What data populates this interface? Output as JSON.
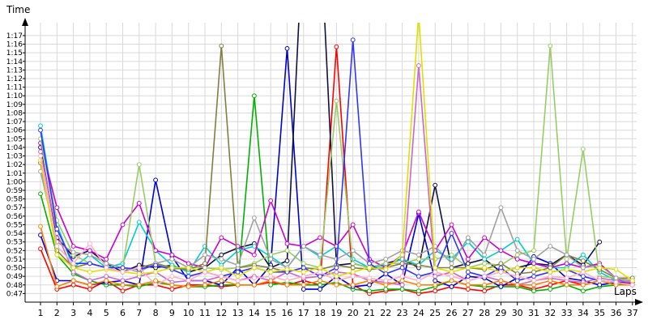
{
  "chart_data": {
    "type": "line",
    "ylabel": "Time",
    "xlabel": "Laps",
    "grid": true,
    "x": [
      1,
      2,
      3,
      4,
      5,
      6,
      7,
      8,
      9,
      10,
      11,
      12,
      13,
      14,
      15,
      16,
      17,
      18,
      19,
      20,
      21,
      22,
      23,
      24,
      25,
      26,
      27,
      28,
      29,
      30,
      31,
      32,
      33,
      34,
      35,
      36,
      37
    ],
    "x_tick_labels": [
      "1",
      "2",
      "3",
      "4",
      "5",
      "6",
      "7",
      "8",
      "9",
      "10",
      "11",
      "12",
      "13",
      "14",
      "15",
      "16",
      "17",
      "18",
      "19",
      "20",
      "21",
      "22",
      "23",
      "24",
      "25",
      "26",
      "27",
      "28",
      "29",
      "30",
      "31",
      "32",
      "33",
      "34",
      "35",
      "36",
      "37"
    ],
    "y_unit": "seconds",
    "ylim": [
      46,
      78.5
    ],
    "y_ticks": [
      47,
      48,
      49,
      50,
      51,
      52,
      53,
      54,
      55,
      56,
      57,
      58,
      59,
      60,
      61,
      62,
      63,
      64,
      65,
      66,
      67,
      68,
      69,
      70,
      71,
      72,
      73,
      74,
      75,
      76,
      77
    ],
    "y_tick_labels": [
      "0:47",
      "0:48",
      "0:49",
      "0:50",
      "0:51",
      "0:52",
      "0:53",
      "0:54",
      "0:55",
      "0:56",
      "0:57",
      "0:58",
      "0:59",
      "1:00",
      "1:01",
      "1:02",
      "1:03",
      "1:04",
      "1:05",
      "1:06",
      "1:07",
      "1:08",
      "1:09",
      "1:10",
      "1:11",
      "1:12",
      "1:13",
      "1:14",
      "1:15",
      "1:16",
      "1:17"
    ],
    "series": [
      {
        "color": "#ff0000",
        "values": [
          52.2,
          47.5,
          48.0,
          47.5,
          48.5,
          47.3,
          48.0,
          48.0,
          47.5,
          48.0,
          48.0,
          47.8,
          48.0,
          48.0,
          48.3,
          48.0,
          48.5,
          48.0,
          75.7,
          48.0,
          47.0,
          47.3,
          47.5,
          47.0,
          47.3,
          47.8,
          47.5,
          47.3,
          48.0,
          48.0,
          47.5,
          48.0,
          48.5,
          48.0,
          48.5,
          48.3,
          48.0
        ]
      },
      {
        "color": "#00b000",
        "values": [
          58.6,
          51.5,
          49.3,
          48.5,
          48.0,
          48.0,
          47.8,
          48.3,
          48.0,
          47.8,
          47.8,
          48.0,
          48.0,
          70.0,
          48.0,
          48.3,
          48.0,
          48.0,
          48.3,
          47.5,
          47.3,
          47.5,
          47.5,
          47.3,
          47.8,
          48.5,
          48.0,
          47.8,
          47.8,
          47.8,
          47.3,
          47.5,
          48.0,
          47.3,
          47.8,
          48.0,
          48.3
        ]
      },
      {
        "color": "#0000cc",
        "values": [
          53.8,
          48.5,
          48.5,
          48.0,
          48.3,
          48.5,
          48.0,
          60.2,
          51.3,
          48.5,
          48.5,
          48.0,
          50.0,
          48.0,
          50.3,
          75.5,
          47.5,
          47.5,
          49.0,
          47.8,
          48.0,
          49.3,
          48.0,
          56.3,
          48.5,
          47.8,
          49.0,
          48.8,
          47.8,
          48.8,
          51.3,
          50.5,
          48.8,
          48.5,
          48.0,
          48.3,
          48.3
        ]
      },
      {
        "color": "#101040",
        "values": [
          64.0,
          53.5,
          51.3,
          52.0,
          50.5,
          49.5,
          50.3,
          50.0,
          50.3,
          49.5,
          50.0,
          51.5,
          52.3,
          52.8,
          50.0,
          50.8,
          90.0,
          90.0,
          50.3,
          50.5,
          50.0,
          50.5,
          51.0,
          50.0,
          59.6,
          50.0,
          50.5,
          51.0,
          49.5,
          50.0,
          50.5,
          50.3,
          51.5,
          50.3,
          53.0,
          null,
          null
        ]
      },
      {
        "color": "#00cccc",
        "values": [
          66.5,
          55.0,
          50.0,
          51.5,
          50.0,
          50.5,
          55.3,
          52.0,
          50.3,
          49.5,
          52.5,
          50.3,
          52.0,
          52.5,
          51.3,
          50.0,
          52.5,
          51.3,
          52.5,
          51.0,
          50.0,
          50.3,
          51.0,
          50.3,
          52.0,
          51.0,
          53.0,
          51.0,
          52.0,
          53.3,
          50.5,
          50.0,
          50.0,
          51.5,
          49.5,
          48.5,
          48.5
        ]
      },
      {
        "color": "#cc00cc",
        "values": [
          64.5,
          57.0,
          52.5,
          52.0,
          51.0,
          55.0,
          57.5,
          52.0,
          51.5,
          50.5,
          50.0,
          53.5,
          52.5,
          51.5,
          57.8,
          52.8,
          52.5,
          53.5,
          52.5,
          55.0,
          51.0,
          50.0,
          51.5,
          56.5,
          52.0,
          55.0,
          51.0,
          53.5,
          52.0,
          51.0,
          50.5,
          50.0,
          50.5,
          50.0,
          50.5,
          48.8,
          48.0
        ]
      },
      {
        "color": "#99cc66",
        "values": [
          65.0,
          55.5,
          51.5,
          50.5,
          50.0,
          50.0,
          62.0,
          50.5,
          49.8,
          50.0,
          50.0,
          49.8,
          50.0,
          50.5,
          51.5,
          52.0,
          50.5,
          50.0,
          69.4,
          50.5,
          50.0,
          50.5,
          50.5,
          51.0,
          51.0,
          51.5,
          50.0,
          50.5,
          50.3,
          51.5,
          52.0,
          75.8,
          51.0,
          63.8,
          49.0,
          48.8,
          48.3
        ]
      },
      {
        "color": "#808040",
        "values": [
          62.2,
          52.0,
          50.0,
          50.5,
          50.0,
          49.5,
          50.0,
          50.5,
          50.0,
          49.8,
          50.5,
          75.8,
          50.0,
          50.3,
          50.0,
          49.5,
          50.0,
          49.8,
          50.3,
          50.0,
          49.8,
          50.0,
          50.5,
          50.3,
          50.0,
          50.0,
          50.0,
          49.8,
          50.5,
          49.3,
          49.5,
          50.0,
          51.5,
          50.8,
          49.8,
          48.8,
          48.8
        ]
      },
      {
        "color": "#cc66cc",
        "values": [
          63.5,
          54.0,
          49.5,
          48.5,
          49.0,
          48.5,
          49.0,
          49.5,
          48.3,
          48.5,
          48.5,
          49.0,
          48.5,
          49.0,
          48.5,
          49.5,
          48.8,
          49.0,
          49.5,
          49.3,
          48.5,
          48.3,
          48.0,
          73.5,
          49.0,
          49.5,
          48.5,
          49.0,
          48.5,
          48.0,
          48.5,
          48.8,
          48.5,
          48.3,
          48.8,
          48.5,
          48.3
        ]
      },
      {
        "color": "#a0a0a0",
        "values": [
          61.2,
          53.0,
          51.8,
          51.5,
          50.5,
          50.0,
          49.5,
          50.5,
          51.0,
          50.0,
          51.5,
          51.0,
          50.3,
          55.8,
          51.0,
          50.0,
          52.5,
          51.5,
          51.0,
          52.0,
          50.5,
          51.0,
          52.0,
          51.5,
          52.5,
          50.5,
          53.5,
          51.5,
          57.0,
          52.0,
          51.0,
          52.5,
          51.5,
          50.0,
          50.3,
          48.8,
          48.5
        ]
      },
      {
        "color": "#3333ff",
        "values": [
          66.0,
          54.5,
          50.5,
          50.5,
          50.0,
          50.0,
          49.8,
          50.3,
          49.8,
          49.0,
          49.5,
          49.0,
          49.5,
          50.0,
          49.5,
          49.5,
          50.0,
          49.0,
          50.0,
          76.5,
          50.5,
          49.3,
          50.0,
          49.0,
          49.5,
          54.0,
          49.5,
          49.0,
          50.0,
          48.5,
          49.0,
          49.5,
          49.8,
          49.0,
          48.5,
          48.3,
          48.0
        ]
      },
      {
        "color": "#e0e000",
        "values": [
          62.5,
          51.5,
          50.0,
          49.5,
          49.8,
          49.5,
          49.3,
          49.5,
          50.0,
          50.0,
          49.5,
          50.0,
          49.0,
          50.0,
          49.5,
          49.8,
          49.5,
          50.0,
          49.0,
          49.5,
          50.0,
          49.8,
          51.5,
          79.5,
          50.0,
          49.5,
          50.0,
          50.0,
          49.5,
          50.0,
          50.0,
          49.5,
          49.8,
          49.5,
          50.0,
          49.8,
          48.5
        ]
      },
      {
        "color": "#ff8000",
        "values": [
          54.8,
          47.8,
          48.5,
          48.0,
          48.5,
          48.0,
          48.0,
          48.5,
          48.0,
          47.8,
          48.0,
          48.5,
          48.0,
          48.0,
          48.5,
          48.0,
          48.0,
          48.5,
          48.0,
          48.0,
          48.5,
          48.0,
          48.5,
          48.0,
          48.0,
          48.5,
          48.0,
          48.0,
          48.5,
          48.0,
          48.0,
          48.5,
          48.0,
          48.0,
          48.5,
          48.0,
          48.0
        ]
      },
      {
        "color": "#ffb0c0",
        "values": [
          63.0,
          52.5,
          50.5,
          52.8,
          50.0,
          49.5,
          50.0,
          48.0,
          49.0,
          48.5,
          49.5,
          49.0,
          48.5,
          48.8,
          49.0,
          48.5,
          49.0,
          49.5,
          48.5,
          49.0,
          48.8,
          48.5,
          49.0,
          48.5,
          49.5,
          49.0,
          48.5,
          49.0,
          49.5,
          49.0,
          48.5,
          49.0,
          48.8,
          49.5,
          48.5,
          48.3,
          48.0
        ]
      }
    ]
  }
}
